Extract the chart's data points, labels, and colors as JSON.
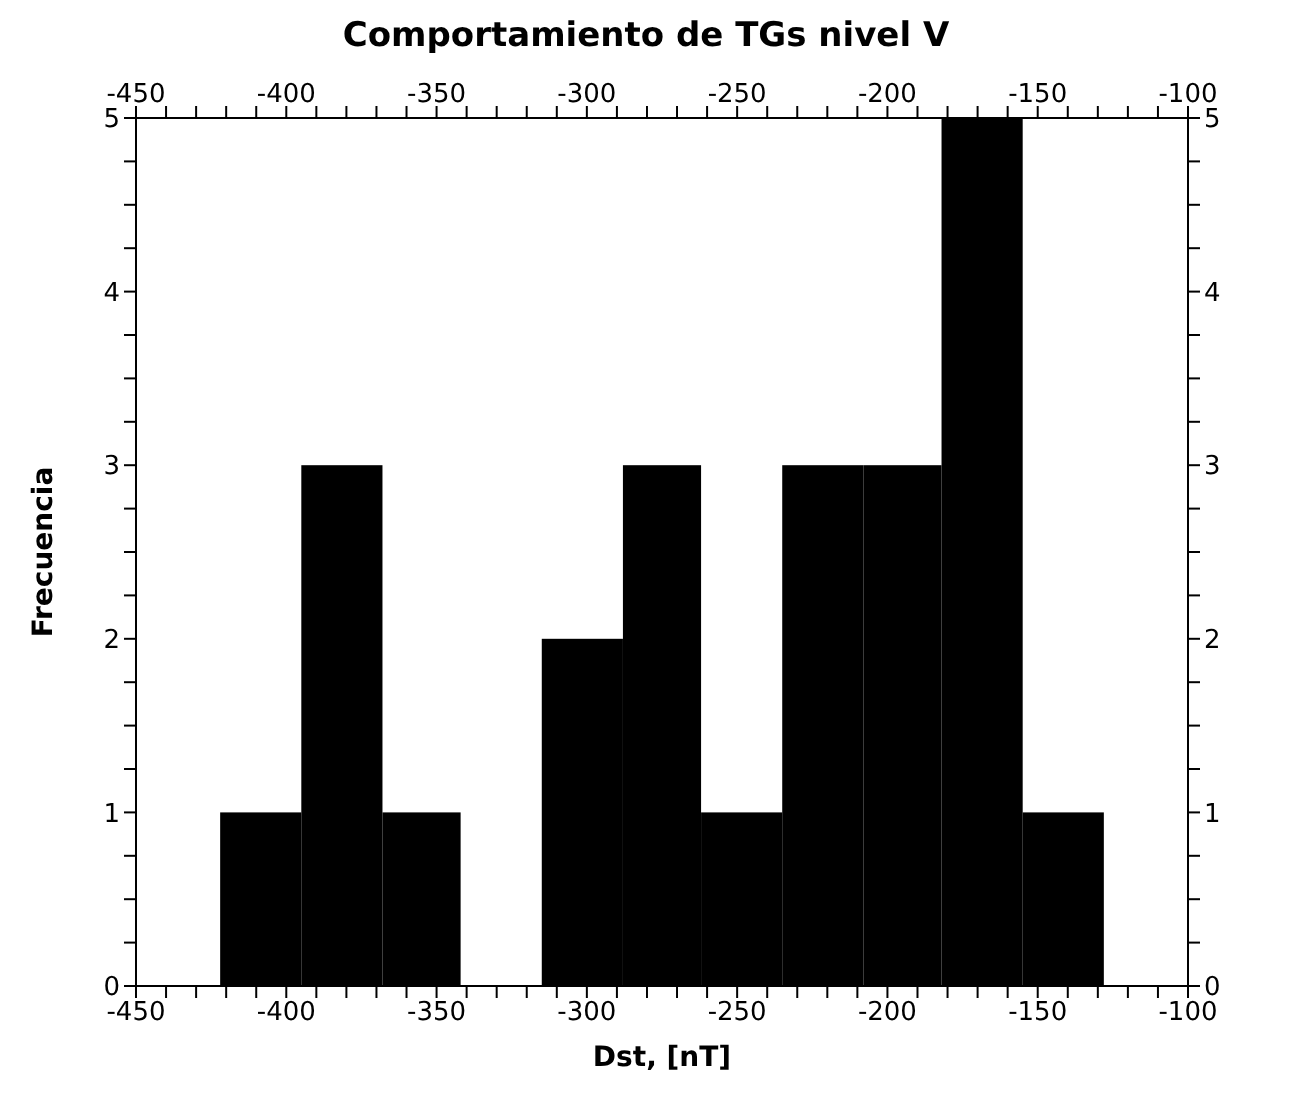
{
  "chart_data": {
    "type": "histogram",
    "title": "Comportamiento de TGs nivel V",
    "xlabel": "Dst, [nT]",
    "ylabel": "Frecuencia",
    "bins": [
      -422,
      -395,
      -368,
      -342,
      -315,
      -288,
      -262,
      -235,
      -208,
      -182,
      -155,
      -128
    ],
    "values": [
      1,
      3,
      1,
      0,
      2,
      3,
      1,
      3,
      3,
      5,
      1
    ],
    "color": "#000000",
    "xlim": [
      -450,
      -100
    ],
    "xticks": [
      -450,
      {
        "value": -440,
        "label": null
      },
      {
        "value": -430,
        "label": null
      },
      {
        "value": -420,
        "label": null
      },
      {
        "value": -410,
        "label": null
      },
      -400,
      {
        "value": -390,
        "label": null
      },
      {
        "value": -380,
        "label": null
      },
      {
        "value": -370,
        "label": null
      },
      {
        "value": -360,
        "label": null
      },
      -350,
      {
        "value": -340,
        "label": null
      },
      {
        "value": -330,
        "label": null
      },
      {
        "value": -320,
        "label": null
      },
      {
        "value": -310,
        "label": null
      },
      -300,
      {
        "value": -290,
        "label": null
      },
      {
        "value": -280,
        "label": null
      },
      {
        "value": -270,
        "label": null
      },
      {
        "value": -260,
        "label": null
      },
      -250,
      {
        "value": -240,
        "label": null
      },
      {
        "value": -230,
        "label": null
      },
      {
        "value": -220,
        "label": null
      },
      {
        "value": -210,
        "label": null
      },
      -200,
      {
        "value": -190,
        "label": null
      },
      {
        "value": -180,
        "label": null
      },
      {
        "value": -170,
        "label": null
      },
      {
        "value": -160,
        "label": null
      },
      -150,
      {
        "value": -140,
        "label": null
      },
      {
        "value": -130,
        "label": null
      },
      {
        "value": -120,
        "label": null
      },
      {
        "value": -110,
        "label": null
      },
      -100
    ],
    "x2lim": [
      -450,
      -100
    ],
    "x2ticks": [
      -450,
      {
        "value": -440,
        "label": null
      },
      {
        "value": -430,
        "label": null
      },
      {
        "value": -420,
        "label": null
      },
      {
        "value": -410,
        "label": null
      },
      -400,
      {
        "value": -390,
        "label": null
      },
      {
        "value": -380,
        "label": null
      },
      {
        "value": -370,
        "label": null
      },
      {
        "value": -360,
        "label": null
      },
      -350,
      {
        "value": -340,
        "label": null
      },
      {
        "value": -330,
        "label": null
      },
      {
        "value": -320,
        "label": null
      },
      {
        "value": -310,
        "label": null
      },
      -300,
      {
        "value": -290,
        "label": null
      },
      {
        "value": -280,
        "label": null
      },
      {
        "value": -270,
        "label": null
      },
      {
        "value": -260,
        "label": null
      },
      -250,
      {
        "value": -240,
        "label": null
      },
      {
        "value": -230,
        "label": null
      },
      {
        "value": -220,
        "label": null
      },
      {
        "value": -210,
        "label": null
      },
      -200,
      {
        "value": -190,
        "label": null
      },
      {
        "value": -180,
        "label": null
      },
      {
        "value": -170,
        "label": null
      },
      {
        "value": -160,
        "label": null
      },
      -150,
      {
        "value": -140,
        "label": null
      },
      {
        "value": -130,
        "label": null
      },
      {
        "value": -120,
        "label": null
      },
      {
        "value": -110,
        "label": null
      },
      -100
    ],
    "ylim": [
      0,
      5
    ],
    "yticks": [
      0,
      {
        "value": 0.25,
        "label": null
      },
      {
        "value": 0.5,
        "label": null
      },
      {
        "value": 0.75,
        "label": null
      },
      1,
      {
        "value": 1.25,
        "label": null
      },
      {
        "value": 1.5,
        "label": null
      },
      {
        "value": 1.75,
        "label": null
      },
      2,
      {
        "value": 2.25,
        "label": null
      },
      {
        "value": 2.5,
        "label": null
      },
      {
        "value": 2.75,
        "label": null
      },
      3,
      {
        "value": 3.25,
        "label": null
      },
      {
        "value": 3.5,
        "label": null
      },
      {
        "value": 3.75,
        "label": null
      },
      4,
      {
        "value": 4.25,
        "label": null
      },
      {
        "value": 4.5,
        "label": null
      },
      {
        "value": 4.75,
        "label": null
      },
      5
    ],
    "y2lim": [
      0,
      5
    ],
    "y2ticks": [
      0,
      {
        "value": 0.25,
        "label": null
      },
      {
        "value": 0.5,
        "label": null
      },
      {
        "value": 0.75,
        "label": null
      },
      1,
      {
        "value": 1.25,
        "label": null
      },
      {
        "value": 1.5,
        "label": null
      },
      {
        "value": 1.75,
        "label": null
      },
      2,
      {
        "value": 2.25,
        "label": null
      },
      {
        "value": 2.5,
        "label": null
      },
      {
        "value": 2.75,
        "label": null
      },
      3,
      {
        "value": 3.25,
        "label": null
      },
      {
        "value": 3.5,
        "label": null
      },
      {
        "value": 3.75,
        "label": null
      },
      4,
      {
        "value": 4.25,
        "label": null
      },
      {
        "value": 4.5,
        "label": null
      },
      {
        "value": 4.75,
        "label": null
      },
      5
    ]
  }
}
